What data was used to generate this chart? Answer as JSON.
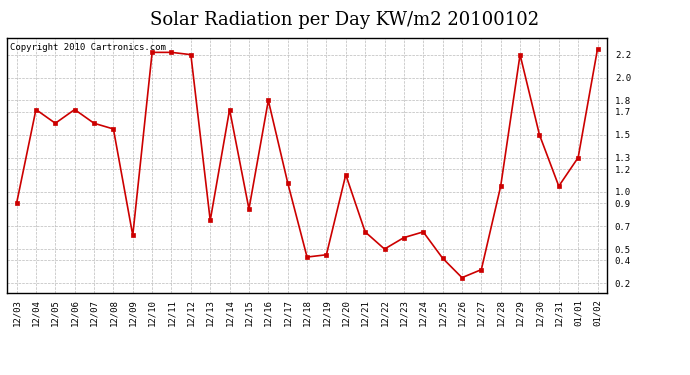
{
  "title": "Solar Radiation per Day KW/m2 20100102",
  "copyright_text": "Copyright 2010 Cartronics.com",
  "labels": [
    "12/03",
    "12/04",
    "12/05",
    "12/06",
    "12/07",
    "12/08",
    "12/09",
    "12/10",
    "12/11",
    "12/12",
    "12/13",
    "12/14",
    "12/15",
    "12/16",
    "12/17",
    "12/18",
    "12/19",
    "12/20",
    "12/21",
    "12/22",
    "12/23",
    "12/24",
    "12/25",
    "12/26",
    "12/27",
    "12/28",
    "12/29",
    "12/30",
    "12/31",
    "01/01",
    "01/02"
  ],
  "values": [
    0.9,
    1.72,
    1.6,
    1.72,
    1.6,
    1.55,
    0.62,
    2.22,
    2.22,
    2.2,
    0.75,
    1.72,
    0.85,
    1.8,
    1.08,
    0.43,
    0.45,
    1.15,
    0.65,
    0.5,
    0.6,
    0.65,
    0.42,
    0.25,
    0.32,
    1.05,
    2.2,
    1.5,
    1.05,
    1.3,
    2.25
  ],
  "line_color": "#cc0000",
  "marker_color": "#cc0000",
  "bg_color": "#ffffff",
  "plot_bg_color": "#ffffff",
  "grid_color": "#bbbbbb",
  "ylim": [
    0.12,
    2.35
  ],
  "yticks": [
    0.2,
    0.4,
    0.5,
    0.7,
    0.9,
    1.0,
    1.2,
    1.3,
    1.5,
    1.7,
    1.8,
    2.0,
    2.2
  ],
  "title_fontsize": 13,
  "tick_fontsize": 6.5,
  "copyright_fontsize": 6.5,
  "fig_width": 6.9,
  "fig_height": 3.75,
  "dpi": 100
}
